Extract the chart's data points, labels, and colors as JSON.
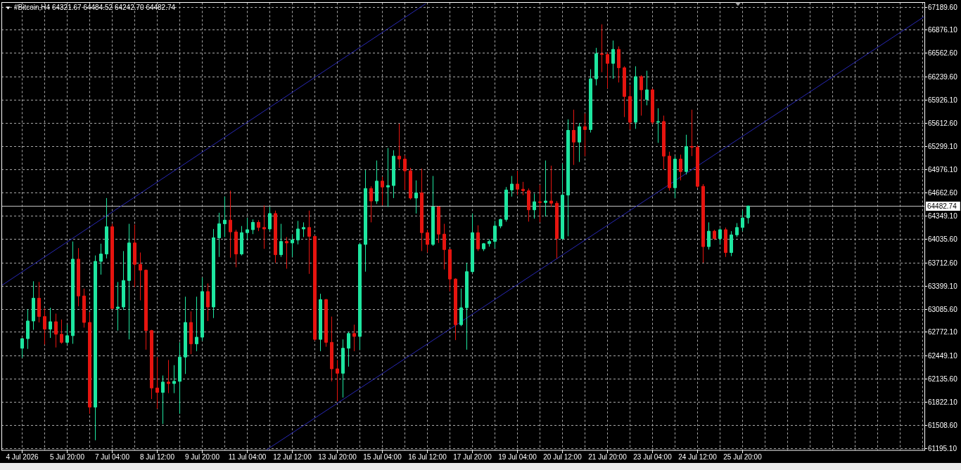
{
  "chart_data": {
    "type": "candlestick",
    "title": "#Bitcoin,H4 64321.67 64484.52 64242.70 64482.74",
    "x": [
      "2026-07-04T12:00",
      "2026-07-04T16:00",
      "2026-07-04T20:00",
      "2026-07-05T00:00",
      "2026-07-05T04:00",
      "2026-07-05T08:00",
      "2026-07-05T12:00",
      "2026-07-05T16:00",
      "2026-07-05T20:00",
      "2026-07-06T00:00",
      "2026-07-06T04:00",
      "2026-07-06T08:00",
      "2026-07-06T12:00",
      "2026-07-06T16:00",
      "2026-07-06T20:00",
      "2026-07-07T00:00",
      "2026-07-07T04:00",
      "2026-07-07T08:00",
      "2026-07-07T12:00",
      "2026-07-07T16:00",
      "2026-07-07T20:00",
      "2026-07-08T00:00",
      "2026-07-08T04:00",
      "2026-07-08T08:00",
      "2026-07-08T12:00",
      "2026-07-08T16:00",
      "2026-07-08T20:00",
      "2026-07-09T00:00",
      "2026-07-09T04:00",
      "2026-07-09T08:00",
      "2026-07-09T12:00",
      "2026-07-09T16:00",
      "2026-07-09T20:00",
      "2026-07-10T00:00",
      "2026-07-10T04:00",
      "2026-07-10T08:00",
      "2026-07-10T12:00",
      "2026-07-10T16:00",
      "2026-07-10T20:00",
      "2026-07-11T00:00",
      "2026-07-11T04:00",
      "2026-07-11T08:00",
      "2026-07-11T12:00",
      "2026-07-11T16:00",
      "2026-07-11T20:00",
      "2026-07-12T00:00",
      "2026-07-12T04:00",
      "2026-07-12T08:00",
      "2026-07-12T12:00",
      "2026-07-12T16:00",
      "2026-07-12T20:00",
      "2026-07-13T00:00",
      "2026-07-13T04:00",
      "2026-07-13T08:00",
      "2026-07-13T12:00",
      "2026-07-13T16:00",
      "2026-07-13T20:00",
      "2026-07-14T00:00",
      "2026-07-14T04:00",
      "2026-07-14T08:00",
      "2026-07-14T12:00",
      "2026-07-14T16:00",
      "2026-07-14T20:00",
      "2026-07-15T00:00",
      "2026-07-15T04:00",
      "2026-07-15T08:00",
      "2026-07-15T12:00",
      "2026-07-15T16:00",
      "2026-07-15T20:00",
      "2026-07-16T00:00",
      "2026-07-16T04:00",
      "2026-07-16T08:00",
      "2026-07-16T12:00",
      "2026-07-16T16:00",
      "2026-07-16T20:00",
      "2026-07-17T00:00",
      "2026-07-17T04:00",
      "2026-07-17T08:00",
      "2026-07-17T12:00",
      "2026-07-17T16:00",
      "2026-07-17T20:00",
      "2026-07-18T00:00",
      "2026-07-18T04:00",
      "2026-07-18T08:00",
      "2026-07-18T12:00",
      "2026-07-18T16:00",
      "2026-07-18T20:00",
      "2026-07-19T00:00",
      "2026-07-19T04:00",
      "2026-07-19T08:00",
      "2026-07-19T12:00",
      "2026-07-19T16:00",
      "2026-07-19T20:00",
      "2026-07-20T00:00",
      "2026-07-20T04:00",
      "2026-07-20T08:00",
      "2026-07-20T12:00",
      "2026-07-20T16:00",
      "2026-07-20T20:00",
      "2026-07-21T00:00",
      "2026-07-21T04:00",
      "2026-07-21T08:00",
      "2026-07-21T12:00",
      "2026-07-21T16:00",
      "2026-07-21T20:00",
      "2026-07-22T00:00",
      "2026-07-22T04:00",
      "2026-07-22T08:00",
      "2026-07-22T12:00",
      "2026-07-22T16:00",
      "2026-07-22T20:00",
      "2026-07-23T00:00",
      "2026-07-23T04:00",
      "2026-07-23T08:00",
      "2026-07-23T12:00",
      "2026-07-23T16:00",
      "2026-07-23T20:00",
      "2026-07-24T00:00",
      "2026-07-24T04:00",
      "2026-07-24T08:00",
      "2026-07-24T12:00",
      "2026-07-24T16:00",
      "2026-07-24T20:00",
      "2026-07-25T00:00",
      "2026-07-25T04:00",
      "2026-07-25T08:00",
      "2026-07-25T12:00",
      "2026-07-25T16:00",
      "2026-07-25T20:00",
      "2026-07-26T00:00"
    ],
    "ohlc": [
      [
        62550,
        62690,
        62420,
        62680
      ],
      [
        62680,
        63080,
        62540,
        62920
      ],
      [
        62920,
        63460,
        62800,
        63230
      ],
      [
        63230,
        63450,
        62900,
        62980
      ],
      [
        62980,
        63090,
        62600,
        62810
      ],
      [
        62810,
        63100,
        62690,
        62910
      ],
      [
        62910,
        63020,
        62560,
        62740
      ],
      [
        62740,
        62940,
        62610,
        62630
      ],
      [
        62630,
        62870,
        62600,
        62720
      ],
      [
        62720,
        64000,
        62610,
        63760
      ],
      [
        63760,
        63910,
        63120,
        63260
      ],
      [
        63260,
        63360,
        62830,
        62900
      ],
      [
        62900,
        63040,
        61660,
        61750
      ],
      [
        61750,
        63810,
        61300,
        63730
      ],
      [
        63730,
        63970,
        63550,
        63830
      ],
      [
        63830,
        64590,
        63770,
        64200
      ],
      [
        64200,
        64240,
        63080,
        63090
      ],
      [
        63090,
        63450,
        62790,
        63110
      ],
      [
        63110,
        63870,
        63070,
        63470
      ],
      [
        63470,
        64240,
        62670,
        63980
      ],
      [
        63980,
        64230,
        63380,
        63690
      ],
      [
        63690,
        63850,
        63200,
        63610
      ],
      [
        63610,
        63620,
        62530,
        62790
      ],
      [
        62790,
        62800,
        61860,
        62010
      ],
      [
        62010,
        62430,
        61730,
        61950
      ],
      [
        61950,
        62180,
        61520,
        62090
      ],
      [
        62090,
        62390,
        61940,
        62070
      ],
      [
        62070,
        62320,
        61940,
        62100
      ],
      [
        62100,
        62630,
        61660,
        62430
      ],
      [
        62430,
        63250,
        62200,
        62900
      ],
      [
        62900,
        63050,
        62470,
        62610
      ],
      [
        62610,
        63250,
        62510,
        62700
      ],
      [
        62700,
        63510,
        62650,
        63320
      ],
      [
        63320,
        63430,
        62920,
        63110
      ],
      [
        63110,
        64170,
        62960,
        64050
      ],
      [
        64050,
        64390,
        63790,
        64240
      ],
      [
        64240,
        64610,
        64060,
        64290
      ],
      [
        64290,
        64690,
        63780,
        64130
      ],
      [
        64130,
        64160,
        63650,
        63830
      ],
      [
        63830,
        64210,
        63810,
        64120
      ],
      [
        64120,
        64320,
        64020,
        64160
      ],
      [
        64160,
        64300,
        64100,
        64260
      ],
      [
        64260,
        64290,
        64140,
        64190
      ],
      [
        64190,
        64490,
        63900,
        64170
      ],
      [
        64170,
        64470,
        64140,
        64380
      ],
      [
        64380,
        64420,
        63710,
        63820
      ],
      [
        63820,
        64240,
        63790,
        64000
      ],
      [
        64000,
        64060,
        63630,
        63980
      ],
      [
        63980,
        64100,
        63790,
        64020
      ],
      [
        64020,
        64280,
        63960,
        64170
      ],
      [
        64170,
        64260,
        64060,
        64190
      ],
      [
        64190,
        64420,
        63560,
        64070
      ],
      [
        64070,
        64080,
        62650,
        62670
      ],
      [
        62670,
        63290,
        62510,
        63210
      ],
      [
        63210,
        63220,
        62570,
        62630
      ],
      [
        62630,
        62980,
        62100,
        62270
      ],
      [
        62270,
        62390,
        61830,
        62210
      ],
      [
        62210,
        62670,
        61880,
        62550
      ],
      [
        62550,
        62770,
        62300,
        62750
      ],
      [
        62750,
        62870,
        62510,
        62710
      ],
      [
        62710,
        63980,
        62530,
        63960
      ],
      [
        63960,
        64970,
        63590,
        64720
      ],
      [
        64720,
        64750,
        64260,
        64550
      ],
      [
        64550,
        65100,
        64510,
        64820
      ],
      [
        64820,
        64880,
        64490,
        64740
      ],
      [
        64740,
        65270,
        64470,
        64760
      ],
      [
        64760,
        65240,
        64590,
        65160
      ],
      [
        65160,
        65600,
        65000,
        65120
      ],
      [
        65120,
        65170,
        64700,
        64960
      ],
      [
        64960,
        65000,
        64570,
        64590
      ],
      [
        64590,
        64830,
        64380,
        64660
      ],
      [
        64660,
        64990,
        63870,
        64120
      ],
      [
        64120,
        64160,
        63850,
        63960
      ],
      [
        63960,
        64890,
        63940,
        64470
      ],
      [
        64470,
        64480,
        63980,
        64100
      ],
      [
        64100,
        64240,
        63620,
        63890
      ],
      [
        63890,
        63900,
        63320,
        63490
      ],
      [
        63490,
        63500,
        62660,
        62870
      ],
      [
        62870,
        63360,
        62850,
        63100
      ],
      [
        63100,
        63710,
        62530,
        63590
      ],
      [
        63590,
        64380,
        63570,
        64120
      ],
      [
        64120,
        64220,
        63870,
        63900
      ],
      [
        63900,
        63980,
        63870,
        63970
      ],
      [
        63970,
        64030,
        63930,
        64000
      ],
      [
        64000,
        64280,
        63910,
        64210
      ],
      [
        64210,
        64310,
        64180,
        64300
      ],
      [
        64300,
        64740,
        64270,
        64700
      ],
      [
        64700,
        64890,
        64610,
        64780
      ],
      [
        64780,
        64960,
        64630,
        64710
      ],
      [
        64710,
        64810,
        64630,
        64690
      ],
      [
        64690,
        64720,
        64270,
        64430
      ],
      [
        64430,
        64650,
        64310,
        64540
      ],
      [
        64540,
        64770,
        64260,
        64530
      ],
      [
        64530,
        65100,
        64340,
        64550
      ],
      [
        64550,
        65030,
        64470,
        64520
      ],
      [
        64520,
        64550,
        63770,
        64040
      ],
      [
        64040,
        65060,
        64020,
        64630
      ],
      [
        64630,
        65660,
        64070,
        65510
      ],
      [
        65510,
        65790,
        65040,
        65350
      ],
      [
        65350,
        65610,
        65080,
        65560
      ],
      [
        65560,
        65740,
        65160,
        65520
      ],
      [
        65520,
        66340,
        65480,
        66210
      ],
      [
        66210,
        66630,
        66120,
        66550
      ],
      [
        66550,
        66950,
        66300,
        66540
      ],
      [
        66540,
        66570,
        66080,
        66420
      ],
      [
        66420,
        66730,
        66210,
        66610
      ],
      [
        66610,
        66650,
        66160,
        66360
      ],
      [
        66360,
        66380,
        65690,
        65970
      ],
      [
        65970,
        66120,
        65520,
        65620
      ],
      [
        65620,
        66380,
        65530,
        66240
      ],
      [
        66240,
        66260,
        65710,
        66060
      ],
      [
        65930,
        66320,
        65850,
        66060
      ],
      [
        66060,
        66080,
        65590,
        65620
      ],
      [
        65620,
        65810,
        65340,
        65630
      ],
      [
        65630,
        65710,
        64980,
        65160
      ],
      [
        65160,
        65220,
        64690,
        64730
      ],
      [
        64730,
        65160,
        64590,
        65120
      ],
      [
        65120,
        65180,
        64830,
        64950
      ],
      [
        64950,
        65450,
        64910,
        65290
      ],
      [
        65290,
        65790,
        65160,
        65280
      ],
      [
        65280,
        65310,
        64730,
        64750
      ],
      [
        64750,
        64780,
        63710,
        63930
      ],
      [
        63930,
        64260,
        63890,
        64140
      ],
      [
        64140,
        64160,
        64020,
        64040
      ],
      [
        64040,
        64180,
        63970,
        64160
      ],
      [
        64160,
        64190,
        63790,
        63850
      ],
      [
        63850,
        64140,
        63800,
        64090
      ],
      [
        64090,
        64250,
        64060,
        64190
      ],
      [
        64190,
        64420,
        64140,
        64320
      ],
      [
        64321.67,
        64484.52,
        64242.7,
        64482.74
      ]
    ],
    "colors": [
      "#1ee6a0",
      "#1ee6a0",
      "#1ee6a0",
      "#e6140f",
      "#e6140f",
      "#1ee6a0",
      "#e6140f",
      "#e6140f",
      "#1ee6a0",
      "#1ee6a0",
      "#e6140f",
      "#e6140f",
      "#e6140f",
      "#1ee6a0",
      "#1ee6a0",
      "#1ee6a0",
      "#e6140f",
      "#1ee6a0",
      "#1ee6a0",
      "#1ee6a0",
      "#e6140f",
      "#e6140f",
      "#e6140f",
      "#e6140f",
      "#e6140f",
      "#1ee6a0",
      "#e6140f",
      "#1ee6a0",
      "#1ee6a0",
      "#1ee6a0",
      "#e6140f",
      "#1ee6a0",
      "#1ee6a0",
      "#e6140f",
      "#1ee6a0",
      "#1ee6a0",
      "#1ee6a0",
      "#e6140f",
      "#e6140f",
      "#1ee6a0",
      "#1ee6a0",
      "#1ee6a0",
      "#e6140f",
      "#e6140f",
      "#1ee6a0",
      "#e6140f",
      "#1ee6a0",
      "#e6140f",
      "#1ee6a0",
      "#1ee6a0",
      "#1ee6a0",
      "#e6140f",
      "#e6140f",
      "#1ee6a0",
      "#e6140f",
      "#e6140f",
      "#e6140f",
      "#1ee6a0",
      "#1ee6a0",
      "#e6140f",
      "#1ee6a0",
      "#1ee6a0",
      "#e6140f",
      "#1ee6a0",
      "#e6140f",
      "#1ee6a0",
      "#1ee6a0",
      "#e6140f",
      "#e6140f",
      "#e6140f",
      "#1ee6a0",
      "#e6140f",
      "#e6140f",
      "#1ee6a0",
      "#e6140f",
      "#e6140f",
      "#e6140f",
      "#e6140f",
      "#1ee6a0",
      "#1ee6a0",
      "#1ee6a0",
      "#e6140f",
      "#1ee6a0",
      "#1ee6a0",
      "#1ee6a0",
      "#1ee6a0",
      "#1ee6a0",
      "#1ee6a0",
      "#e6140f",
      "#e6140f",
      "#e6140f",
      "#1ee6a0",
      "#e6140f",
      "#1ee6a0",
      "#e6140f",
      "#e6140f",
      "#1ee6a0",
      "#1ee6a0",
      "#e6140f",
      "#1ee6a0",
      "#e6140f",
      "#1ee6a0",
      "#1ee6a0",
      "#e6140f",
      "#e6140f",
      "#1ee6a0",
      "#e6140f",
      "#e6140f",
      "#e6140f",
      "#1ee6a0",
      "#e6140f",
      "#1ee6a0",
      "#e6140f",
      "#1ee6a0",
      "#e6140f",
      "#e6140f",
      "#1ee6a0",
      "#e6140f",
      "#1ee6a0",
      "#e6140f",
      "#e6140f",
      "#e6140f",
      "#1ee6a0",
      "#e6140f",
      "#1ee6a0",
      "#e6140f",
      "#1ee6a0",
      "#1ee6a0",
      "#1ee6a0",
      "#1ee6a0"
    ],
    "series": [
      {
        "type": "line",
        "x": [
          "2026-07-03T21:30",
          "2026-07-16T11:00"
        ],
        "values": [
          63400,
          67230
        ],
        "color": "#2828b4"
      },
      {
        "type": "line",
        "x": [
          "2026-07-11T18:00",
          "2026-07-31T05:00"
        ],
        "values": [
          61170,
          67050
        ],
        "color": "#2828b4"
      }
    ],
    "xlim": [
      "2026-07-03T21:30",
      "2026-07-31T05:30"
    ],
    "xticks": [
      {
        "value": "2026-07-04T12:00",
        "label": "4 Jul 2026"
      },
      {
        "value": "2026-07-05T04:00",
        "label": null
      },
      {
        "value": "2026-07-05T20:00",
        "label": "5 Jul 20:00"
      },
      {
        "value": "2026-07-06T12:00",
        "label": null
      },
      {
        "value": "2026-07-07T04:00",
        "label": "7 Jul 04:00"
      },
      {
        "value": "2026-07-07T20:00",
        "label": null
      },
      {
        "value": "2026-07-08T12:00",
        "label": "8 Jul 12:00"
      },
      {
        "value": "2026-07-09T04:00",
        "label": null
      },
      {
        "value": "2026-07-09T20:00",
        "label": "9 Jul 20:00"
      },
      {
        "value": "2026-07-10T12:00",
        "label": null
      },
      {
        "value": "2026-07-11T04:00",
        "label": "11 Jul 04:00"
      },
      {
        "value": "2026-07-11T20:00",
        "label": null
      },
      {
        "value": "2026-07-12T12:00",
        "label": "12 Jul 12:00"
      },
      {
        "value": "2026-07-13T04:00",
        "label": null
      },
      {
        "value": "2026-07-13T20:00",
        "label": "13 Jul 20:00"
      },
      {
        "value": "2026-07-14T12:00",
        "label": null
      },
      {
        "value": "2026-07-15T04:00",
        "label": "15 Jul 04:00"
      },
      {
        "value": "2026-07-15T20:00",
        "label": null
      },
      {
        "value": "2026-07-16T12:00",
        "label": "16 Jul 12:00"
      },
      {
        "value": "2026-07-17T04:00",
        "label": null
      },
      {
        "value": "2026-07-17T20:00",
        "label": "17 Jul 20:00"
      },
      {
        "value": "2026-07-18T12:00",
        "label": null
      },
      {
        "value": "2026-07-19T04:00",
        "label": "19 Jul 04:00"
      },
      {
        "value": "2026-07-19T20:00",
        "label": null
      },
      {
        "value": "2026-07-20T12:00",
        "label": "20 Jul 12:00"
      },
      {
        "value": "2026-07-21T04:00",
        "label": null
      },
      {
        "value": "2026-07-21T20:00",
        "label": "21 Jul 20:00"
      },
      {
        "value": "2026-07-22T12:00",
        "label": null
      },
      {
        "value": "2026-07-23T04:00",
        "label": "23 Jul 04:00"
      },
      {
        "value": "2026-07-23T20:00",
        "label": null
      },
      {
        "value": "2026-07-24T12:00",
        "label": "24 Jul 12:00"
      },
      {
        "value": "2026-07-25T04:00",
        "label": null
      },
      {
        "value": "2026-07-25T20:00",
        "label": "25 Jul 20:00"
      },
      {
        "value": "2026-07-26T12:00",
        "label": null
      },
      {
        "value": "2026-07-27T04:00",
        "label": null
      },
      {
        "value": "2026-07-27T20:00",
        "label": null
      },
      {
        "value": "2026-07-28T12:00",
        "label": null
      },
      {
        "value": "2026-07-29T04:00",
        "label": null
      },
      {
        "value": "2026-07-29T20:00",
        "label": null
      },
      {
        "value": "2026-07-30T12:00",
        "label": null
      },
      {
        "value": "2026-07-31T04:00",
        "label": null
      }
    ],
    "ylim": [
      61163,
      67247
    ],
    "yticks": [
      {
        "value": 61195.1,
        "label": "61195.10"
      },
      {
        "value": 61508.6,
        "label": "61508.60"
      },
      {
        "value": 61822.1,
        "label": "61822.10"
      },
      {
        "value": 62135.6,
        "label": "62135.60"
      },
      {
        "value": 62449.1,
        "label": "62449.10"
      },
      {
        "value": 62772.1,
        "label": "62772.10"
      },
      {
        "value": 63085.6,
        "label": "63085.60"
      },
      {
        "value": 63399.1,
        "label": "63399.10"
      },
      {
        "value": 63712.6,
        "label": "63712.60"
      },
      {
        "value": 64035.6,
        "label": "64035.60"
      },
      {
        "value": 64349.1,
        "label": "64349.10"
      },
      {
        "value": 64662.6,
        "label": "64662.60"
      },
      {
        "value": 64976.1,
        "label": "64976.10"
      },
      {
        "value": 65299.1,
        "label": "65299.10"
      },
      {
        "value": 65612.6,
        "label": "65612.60"
      },
      {
        "value": 65926.1,
        "label": "65926.10"
      },
      {
        "value": 66239.6,
        "label": "66239.60"
      },
      {
        "value": 66562.6,
        "label": "66562.60"
      },
      {
        "value": 66876.1,
        "label": "66876.10"
      },
      {
        "value": 67189.6,
        "label": "67189.60"
      }
    ],
    "grid": true,
    "ref_lines": [
      {
        "axis": "y",
        "value": 64482.74,
        "label": "64482.74",
        "color": "#c0c0c0"
      }
    ]
  }
}
